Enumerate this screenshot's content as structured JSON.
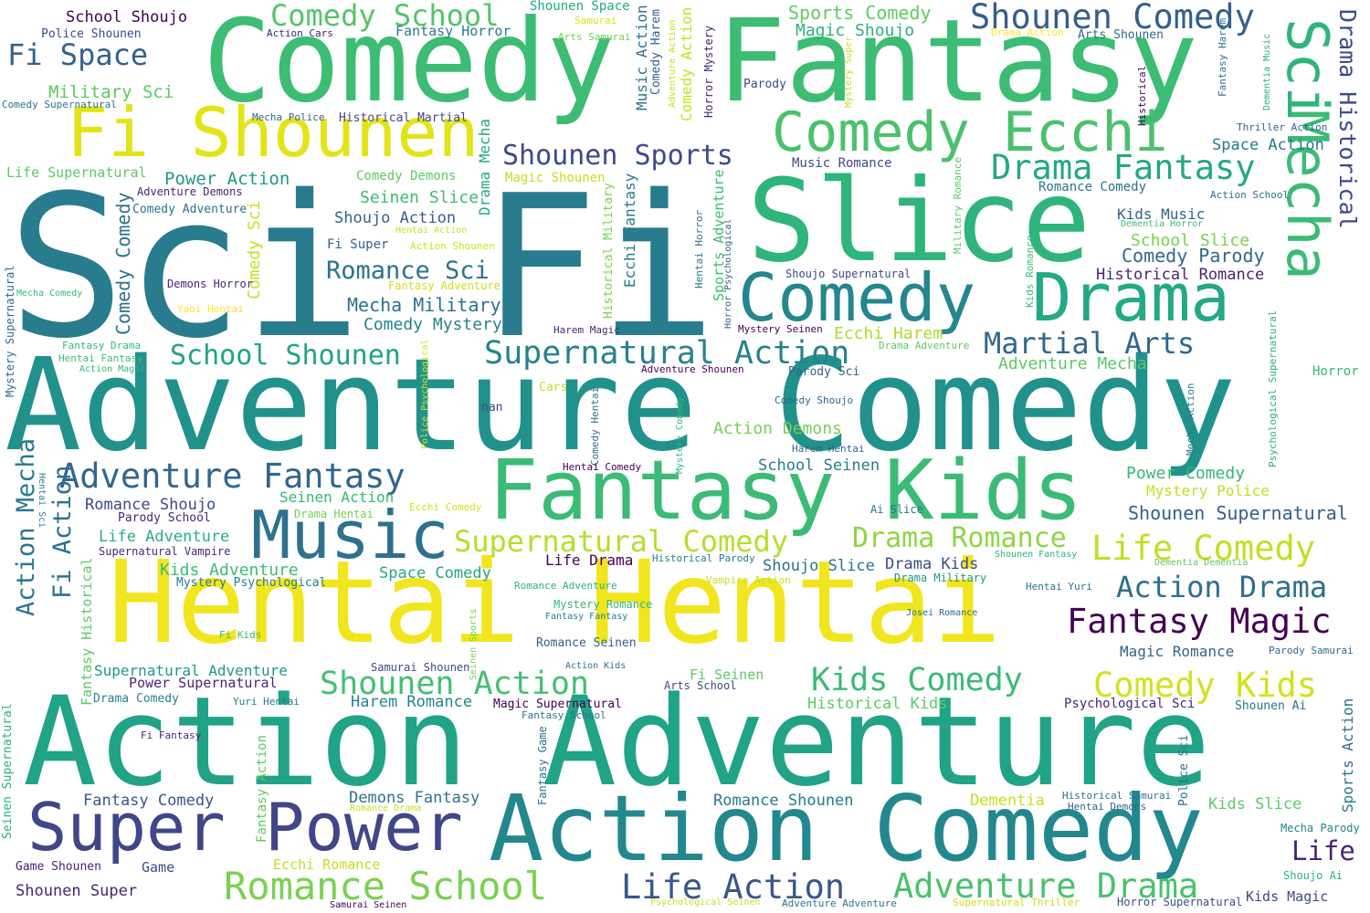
{
  "words": [
    {
      "text": "Sci Fi",
      "color": "#287c8e",
      "rot": 0
    },
    {
      "text": "Adventure Comedy",
      "color": "#21918c",
      "rot": 0
    },
    {
      "text": "Action Adventure",
      "color": "#20a386",
      "rot": 0
    },
    {
      "text": "Comedy",
      "color": "#3dbc74",
      "rot": 0
    },
    {
      "text": "Fantasy",
      "color": "#3dbc74",
      "rot": 0
    },
    {
      "text": "Hentai Hentai",
      "color": "#f1e51d",
      "rot": 0
    },
    {
      "text": "Slice",
      "color": "#2fb47c",
      "rot": 0
    },
    {
      "text": "Fantasy Kids",
      "color": "#3bbb75",
      "rot": 0
    },
    {
      "text": "Action Comedy",
      "color": "#23888e",
      "rot": 0
    },
    {
      "text": "Comedy",
      "color": "#24868e",
      "rot": 0
    },
    {
      "text": "Drama",
      "color": "#23a983",
      "rot": 0
    },
    {
      "text": "Fi Shounen",
      "color": "#e2e418",
      "rot": 0
    },
    {
      "text": "Music",
      "color": "#2c728e",
      "rot": 0
    },
    {
      "text": "Super Power",
      "color": "#404688",
      "rot": 0
    },
    {
      "text": "Comedy Ecchi",
      "color": "#4ac16d",
      "rot": 0
    },
    {
      "text": "Mecha",
      "color": "#3bbb75",
      "rot": 90
    },
    {
      "text": "Sci",
      "color": "#2fb47c",
      "rot": 90
    },
    {
      "text": "Shounen Comedy",
      "color": "#355e8d",
      "rot": 0
    },
    {
      "text": "Drama Fantasy",
      "color": "#22a884",
      "rot": 0
    },
    {
      "text": "Adventure Fantasy",
      "color": "#31668e",
      "rot": 0
    },
    {
      "text": "Supernatural Action",
      "color": "#26828e",
      "rot": 0
    },
    {
      "text": "Romance School",
      "color": "#7ad151",
      "rot": 0
    },
    {
      "text": "Adventure Drama",
      "color": "#4ac16d",
      "rot": 0
    },
    {
      "text": "Life Action",
      "color": "#39568c",
      "rot": 0
    },
    {
      "text": "Life Comedy",
      "color": "#c2df23",
      "rot": 0
    },
    {
      "text": "Comedy Kids",
      "color": "#d2e21b",
      "rot": 0
    },
    {
      "text": "Fantasy Magic",
      "color": "#440154",
      "rot": 0
    },
    {
      "text": "Supernatural Comedy",
      "color": "#b5de2b",
      "rot": 0
    },
    {
      "text": "Drama Romance",
      "color": "#8ed645",
      "rot": 0
    },
    {
      "text": "Shounen Action",
      "color": "#44bf70",
      "rot": 0
    },
    {
      "text": "Kids Comedy",
      "color": "#3aba76",
      "rot": 0
    },
    {
      "text": "Action Drama",
      "color": "#2e6e8e",
      "rot": 0
    },
    {
      "text": "Martial Arts",
      "color": "#31678e",
      "rot": 0
    },
    {
      "text": "Shounen Sports",
      "color": "#3e4989",
      "rot": 0
    },
    {
      "text": "Comedy School",
      "color": "#54c568",
      "rot": 0
    },
    {
      "text": "Fi Space",
      "color": "#33628d",
      "rot": 0
    },
    {
      "text": "School Shounen",
      "color": "#20a386",
      "rot": 0
    },
    {
      "text": "Romance Sci",
      "color": "#2c728e",
      "rot": 0
    },
    {
      "text": "Drama Historical",
      "color": "#3e4989",
      "rot": 90
    },
    {
      "text": "Action Mecha",
      "color": "#2a788e",
      "rot": -90
    },
    {
      "text": "Fi Action",
      "color": "#2d708e",
      "rot": -90
    },
    {
      "text": "Sports Comedy",
      "color": "#62cb5f",
      "rot": 0
    },
    {
      "text": "Magic Shoujo",
      "color": "#2ab07f",
      "rot": 0
    },
    {
      "text": "Mecha Military",
      "color": "#2c728e",
      "rot": 0
    },
    {
      "text": "Comedy Mystery",
      "color": "#26828e",
      "rot": 0
    },
    {
      "text": "Comedy Parody",
      "color": "#31678e",
      "rot": 0
    },
    {
      "text": "School Slice",
      "color": "#7ad151",
      "rot": 0
    },
    {
      "text": "Kids Music",
      "color": "#33638d",
      "rot": 0
    },
    {
      "text": "Power Comedy",
      "color": "#35b779",
      "rot": 0
    },
    {
      "text": "Shounen Supernatural",
      "color": "#355f8d",
      "rot": 0
    },
    {
      "text": "Mystery Police",
      "color": "#c2df23",
      "rot": 0
    },
    {
      "text": "Kids Adventure",
      "color": "#3dbc74",
      "rot": 0
    },
    {
      "text": "Adventure Mecha",
      "color": "#5ec962",
      "rot": 0
    },
    {
      "text": "Action Demons",
      "color": "#75d054",
      "rot": 0
    },
    {
      "text": "Ecchi Harem",
      "color": "#addc30",
      "rot": 0
    },
    {
      "text": "Historical Romance",
      "color": "#482576",
      "rot": 0
    },
    {
      "text": "Space Action",
      "color": "#2a788e",
      "rot": 0
    },
    {
      "text": "Military Sci",
      "color": "#5ec962",
      "rot": 0
    },
    {
      "text": "Power Action",
      "color": "#1f988b",
      "rot": 0
    },
    {
      "text": "Seinen Slice",
      "color": "#3dbc74",
      "rot": 0
    },
    {
      "text": "Shoujo Action",
      "color": "#355f8d",
      "rot": 0
    },
    {
      "text": "Comedy Comedy",
      "color": "#2c728e",
      "rot": -90
    },
    {
      "text": "Comedy Sci",
      "color": "#c8e020",
      "rot": -90
    },
    {
      "text": "Drama Mecha",
      "color": "#22a884",
      "rot": -90
    },
    {
      "text": "Ecchi Fantasy",
      "color": "#2a788e",
      "rot": -90
    },
    {
      "text": "Sports Adventure",
      "color": "#3dbc74",
      "rot": -90
    },
    {
      "text": "Music Action",
      "color": "#2c728e",
      "rot": -90
    },
    {
      "text": "Comedy Action",
      "color": "#c8e020",
      "rot": -90
    },
    {
      "text": "Comedy Harem",
      "color": "#355f8d",
      "rot": -90
    },
    {
      "text": "Historical Military",
      "color": "#7ad151",
      "rot": -90
    },
    {
      "text": "Shounen Space",
      "color": "#22a884",
      "rot": 0
    },
    {
      "text": "School Shoujo",
      "color": "#440154",
      "rot": 0
    },
    {
      "text": "Police Shounen",
      "color": "#3e4989",
      "rot": 0
    },
    {
      "text": "Action Cars",
      "color": "#2a2f6e",
      "rot": 0
    },
    {
      "text": "Fantasy Horror",
      "color": "#2a788e",
      "rot": 0
    },
    {
      "text": "Samurai",
      "color": "#dde318",
      "rot": 0
    },
    {
      "text": "Arts Samurai",
      "color": "#75d054",
      "rot": 0
    },
    {
      "text": "Drama Action",
      "color": "#fde725",
      "rot": 0
    },
    {
      "text": "Arts Shounen",
      "color": "#31678e",
      "rot": 0
    },
    {
      "text": "Comedy Supernatural",
      "color": "#2c728e",
      "rot": 0
    },
    {
      "text": "Mecha Police",
      "color": "#33638d",
      "rot": 0
    },
    {
      "text": "Historical Martial",
      "color": "#3e4989",
      "rot": 0
    },
    {
      "text": "Life Supernatural",
      "color": "#5ec962",
      "rot": 0
    },
    {
      "text": "Adventure Demons",
      "color": "#482576",
      "rot": 0
    },
    {
      "text": "Comedy Adventure",
      "color": "#2c728e",
      "rot": 0
    },
    {
      "text": "Comedy Demons",
      "color": "#5ec962",
      "rot": 0
    },
    {
      "text": "Magic Shounen",
      "color": "#c2df23",
      "rot": 0
    },
    {
      "text": "Music Romance",
      "color": "#3e4989",
      "rot": 0
    },
    {
      "text": "Romance Comedy",
      "color": "#2c728e",
      "rot": 0
    },
    {
      "text": "Action School",
      "color": "#2c728e",
      "rot": 0
    },
    {
      "text": "Thriller Action",
      "color": "#355f8d",
      "rot": 0
    },
    {
      "text": "Dementia Horror",
      "color": "#3dbc74",
      "rot": 0
    },
    {
      "text": "Hentai Action",
      "color": "#c8e020",
      "rot": 0
    },
    {
      "text": "Action Shounen",
      "color": "#d2e21b",
      "rot": 0
    },
    {
      "text": "Fi Super",
      "color": "#355f8d",
      "rot": 0
    },
    {
      "text": "Fantasy Adventure",
      "color": "#c8e020",
      "rot": 0
    },
    {
      "text": "Shoujo Supernatural",
      "color": "#3e4989",
      "rot": 0
    },
    {
      "text": "Demons Horror",
      "color": "#482576",
      "rot": 0
    },
    {
      "text": "Mecha Comedy",
      "color": "#35b779",
      "rot": 0
    },
    {
      "text": "Yaoi Hentai",
      "color": "#fde725",
      "rot": 0
    },
    {
      "text": "Harem Magic",
      "color": "#482576",
      "rot": 0
    },
    {
      "text": "Mystery Seinen",
      "color": "#440154",
      "rot": 0
    },
    {
      "text": "Drama Adventure",
      "color": "#5ec962",
      "rot": 0
    },
    {
      "text": "Parody Sci",
      "color": "#355f8d",
      "rot": 0
    },
    {
      "text": "Adventure Shounen",
      "color": "#440154",
      "rot": 0
    },
    {
      "text": "Horror",
      "color": "#35b779",
      "rot": 0
    },
    {
      "text": "Fantasy Drama",
      "color": "#35b779",
      "rot": 0
    },
    {
      "text": "Hentai Fantasy",
      "color": "#3dbc74",
      "rot": 0
    },
    {
      "text": "Action Magic",
      "color": "#35b779",
      "rot": 0
    },
    {
      "text": "Cars",
      "color": "#c8e020",
      "rot": 0
    },
    {
      "text": "nan",
      "color": "#3e4989",
      "rot": 0
    },
    {
      "text": "Comedy Shoujo",
      "color": "#31678e",
      "rot": 0
    },
    {
      "text": "Harem Hentai",
      "color": "#33638d",
      "rot": 0
    },
    {
      "text": "Hentai Comedy",
      "color": "#440154",
      "rot": 0
    },
    {
      "text": "School Seinen",
      "color": "#287c8e",
      "rot": 0
    },
    {
      "text": "Romance Shoujo",
      "color": "#3e4989",
      "rot": 0
    },
    {
      "text": "Parody School",
      "color": "#482576",
      "rot": 0
    },
    {
      "text": "Seinen Action",
      "color": "#35b779",
      "rot": 0
    },
    {
      "text": "Drama Hentai",
      "color": "#75d054",
      "rot": 0
    },
    {
      "text": "Ecchi Comedy",
      "color": "#d2e21b",
      "rot": 0
    },
    {
      "text": "Ai Slice",
      "color": "#2c728e",
      "rot": 0
    },
    {
      "text": "Life Adventure",
      "color": "#2ab07f",
      "rot": 0
    },
    {
      "text": "Supernatural Vampire",
      "color": "#482576",
      "rot": 0
    },
    {
      "text": "Life Drama",
      "color": "#440154",
      "rot": 0
    },
    {
      "text": "Historical Parody",
      "color": "#287c8e",
      "rot": 0
    },
    {
      "text": "Shoujo Slice",
      "color": "#2c728e",
      "rot": 0
    },
    {
      "text": "Drama Kids",
      "color": "#3e4989",
      "rot": 0
    },
    {
      "text": "Shounen Fantasy",
      "color": "#2ab07f",
      "rot": 0
    },
    {
      "text": "Dementia Dementia",
      "color": "#5ec962",
      "rot": 0
    },
    {
      "text": "Mystery Psychological",
      "color": "#287c8e",
      "rot": 0
    },
    {
      "text": "Space Comedy",
      "color": "#22a884",
      "rot": 0
    },
    {
      "text": "Romance Adventure",
      "color": "#2ab07f",
      "rot": 0
    },
    {
      "text": "Vampire Action",
      "color": "#c2df23",
      "rot": 0
    },
    {
      "text": "Drama Military",
      "color": "#1f988b",
      "rot": 0
    },
    {
      "text": "Hentai Yuri",
      "color": "#2c728e",
      "rot": 0
    },
    {
      "text": "Mystery Romance",
      "color": "#35b779",
      "rot": 0
    },
    {
      "text": "Fantasy Fantasy",
      "color": "#287c8e",
      "rot": 0
    },
    {
      "text": "Josei Romance",
      "color": "#31678e",
      "rot": 0
    },
    {
      "text": "Fi Kids",
      "color": "#3dbc74",
      "rot": 0
    },
    {
      "text": "Romance Seinen",
      "color": "#355f8d",
      "rot": 0
    },
    {
      "text": "Action Kids",
      "color": "#2c728e",
      "rot": 0
    },
    {
      "text": "Magic Romance",
      "color": "#33638d",
      "rot": 0
    },
    {
      "text": "Parody Samurai",
      "color": "#31678e",
      "rot": 0
    },
    {
      "text": "Supernatural Adventure",
      "color": "#1f988b",
      "rot": 0
    },
    {
      "text": "Samurai Shounen",
      "color": "#3e4989",
      "rot": 0
    },
    {
      "text": "Power Supernatural",
      "color": "#482576",
      "rot": 0
    },
    {
      "text": "Fi Seinen",
      "color": "#5ec962",
      "rot": 0
    },
    {
      "text": "Arts School",
      "color": "#3e4989",
      "rot": 0
    },
    {
      "text": "Drama Comedy",
      "color": "#26828e",
      "rot": 0
    },
    {
      "text": "Harem Romance",
      "color": "#26828e",
      "rot": 0
    },
    {
      "text": "Magic Supernatural",
      "color": "#440154",
      "rot": 0
    },
    {
      "text": "Historical Kids",
      "color": "#5ec962",
      "rot": 0
    },
    {
      "text": "Psychological Sci",
      "color": "#482576",
      "rot": 0
    },
    {
      "text": "Shounen Ai",
      "color": "#2c728e",
      "rot": 0
    },
    {
      "text": "Yuri Hentai",
      "color": "#2a788e",
      "rot": 0
    },
    {
      "text": "Fi Fantasy",
      "color": "#482576",
      "rot": 0
    },
    {
      "text": "Fantasy School",
      "color": "#2c728e",
      "rot": 0
    },
    {
      "text": "Fantasy Comedy",
      "color": "#39568c",
      "rot": 0
    },
    {
      "text": "Demons Fantasy",
      "color": "#2c728e",
      "rot": 0
    },
    {
      "text": "Romance Drama",
      "color": "#c2df23",
      "rot": 0
    },
    {
      "text": "Romance Shounen",
      "color": "#2a788e",
      "rot": 0
    },
    {
      "text": "Dementia",
      "color": "#c8e020",
      "rot": 0
    },
    {
      "text": "Historical Samurai",
      "color": "#2c728e",
      "rot": 0
    },
    {
      "text": "Hentai Demons",
      "color": "#33638d",
      "rot": 0
    },
    {
      "text": "Kids Slice",
      "color": "#5ec962",
      "rot": 0
    },
    {
      "text": "Mecha Parody",
      "color": "#26828e",
      "rot": 0
    },
    {
      "text": "Life",
      "color": "#482576",
      "rot": 0
    },
    {
      "text": "Shoujo Ai",
      "color": "#2ab07f",
      "rot": 0
    },
    {
      "text": "Kids Magic",
      "color": "#3e4989",
      "rot": 0
    },
    {
      "text": "Game Shounen",
      "color": "#482576",
      "rot": 0
    },
    {
      "text": "Game",
      "color": "#3e4989",
      "rot": 0
    },
    {
      "text": "Shounen Super",
      "color": "#482576",
      "rot": 0
    },
    {
      "text": "Ecchi Romance",
      "color": "#c2df23",
      "rot": 0
    },
    {
      "text": "Samurai Seinen",
      "color": "#440154",
      "rot": 0
    },
    {
      "text": "Psychological Seinen",
      "color": "#c8e020",
      "rot": 0
    },
    {
      "text": "Adventure Adventure",
      "color": "#2c728e",
      "rot": 0
    },
    {
      "text": "Supernatural Thriller",
      "color": "#c8e020",
      "rot": 0
    },
    {
      "text": "Horror Supernatural",
      "color": "#3e4989",
      "rot": 0
    },
    {
      "text": "Mystery Supernatural",
      "color": "#31678e",
      "rot": -90
    },
    {
      "text": "Seinen Supernatural",
      "color": "#2ab07f",
      "rot": -90
    },
    {
      "text": "Fantasy Historical",
      "color": "#5ec962",
      "rot": -90
    },
    {
      "text": "Hentai Sci",
      "color": "#287c8e",
      "rot": 90
    },
    {
      "text": "Fantasy Action",
      "color": "#5ec962",
      "rot": -90
    },
    {
      "text": "Police Psychological",
      "color": "#d2e21b",
      "rot": -90
    },
    {
      "text": "Comedy Hentai",
      "color": "#2c728e",
      "rot": -90
    },
    {
      "text": "Mystery Comedy",
      "color": "#35b779",
      "rot": -90
    },
    {
      "text": "Seinen Sports",
      "color": "#7ad151",
      "rot": -90
    },
    {
      "text": "Fantasy Game",
      "color": "#2c728e",
      "rot": -90
    },
    {
      "text": "Hentai Horror",
      "color": "#2c728e",
      "rot": -90
    },
    {
      "text": "Horror Psychological",
      "color": "#355f8d",
      "rot": -90
    },
    {
      "text": "Military Romance",
      "color": "#5ec962",
      "rot": -90
    },
    {
      "text": "Kids Romance",
      "color": "#3dbc74",
      "rot": -90
    },
    {
      "text": "Adventure Action",
      "color": "#c8e020",
      "rot": -90
    },
    {
      "text": "Horror Mystery",
      "color": "#482576",
      "rot": -90
    },
    {
      "text": "Mystery Super",
      "color": "#c8e020",
      "rot": -90
    },
    {
      "text": "Parody",
      "color": "#3e4989",
      "rot": 0
    },
    {
      "text": "Fantasy Harem",
      "color": "#2c728e",
      "rot": -90
    },
    {
      "text": "Dementia Music",
      "color": "#2ab07f",
      "rot": -90
    },
    {
      "text": "Historical",
      "color": "#440154",
      "rot": -90
    },
    {
      "text": "Mecha Action",
      "color": "#287c8e",
      "rot": -90
    },
    {
      "text": "Psychological Supernatural",
      "color": "#2ab07f",
      "rot": -90
    },
    {
      "text": "Police Sci",
      "color": "#2c728e",
      "rot": -90
    },
    {
      "text": "Sports Action",
      "color": "#2c728e",
      "rot": -90
    }
  ]
}
